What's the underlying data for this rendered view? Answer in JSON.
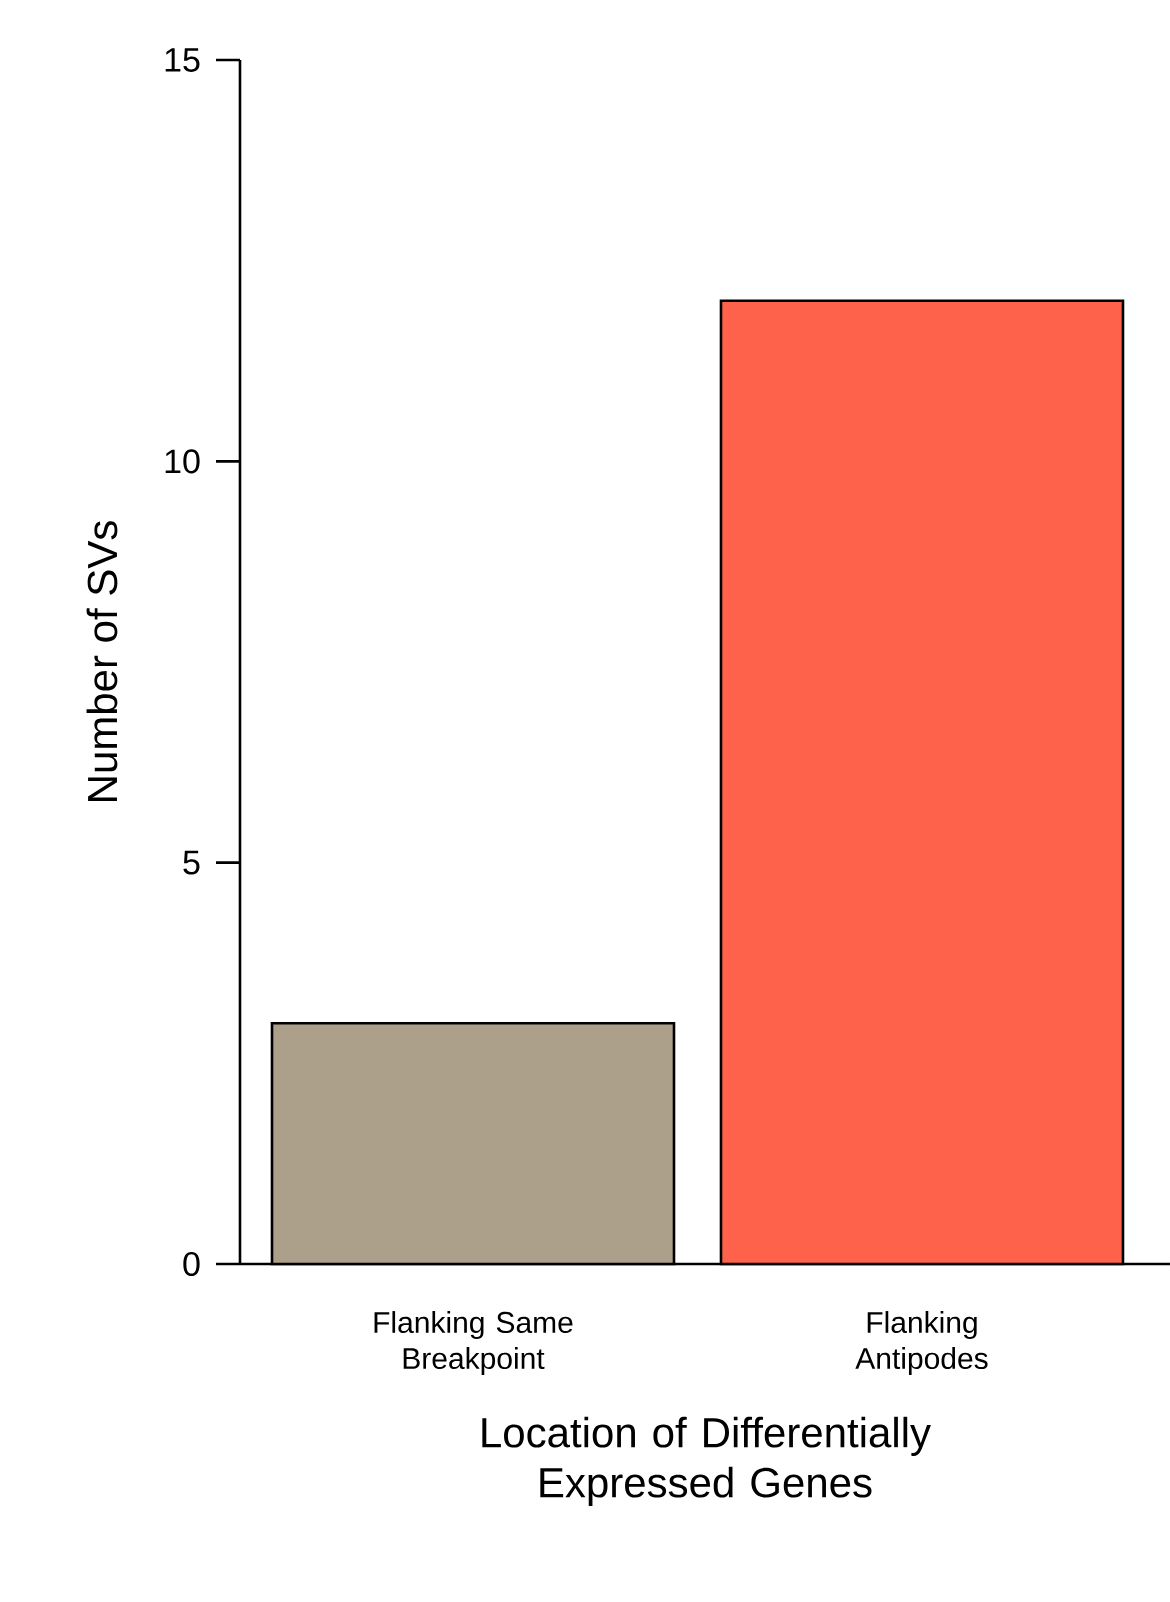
{
  "chart_data": {
    "type": "bar",
    "categories": [
      "Flanking Same Breakpoint",
      "Flanking Antipodes"
    ],
    "values": [
      3,
      12
    ],
    "colors": [
      "#ada08a",
      "#ff624a"
    ],
    "xlabel": "Location of Differentially Expressed Genes",
    "ylabel": "Number of SVs",
    "ylim": [
      0,
      15
    ],
    "yticks": [
      0,
      5,
      10,
      15
    ]
  }
}
